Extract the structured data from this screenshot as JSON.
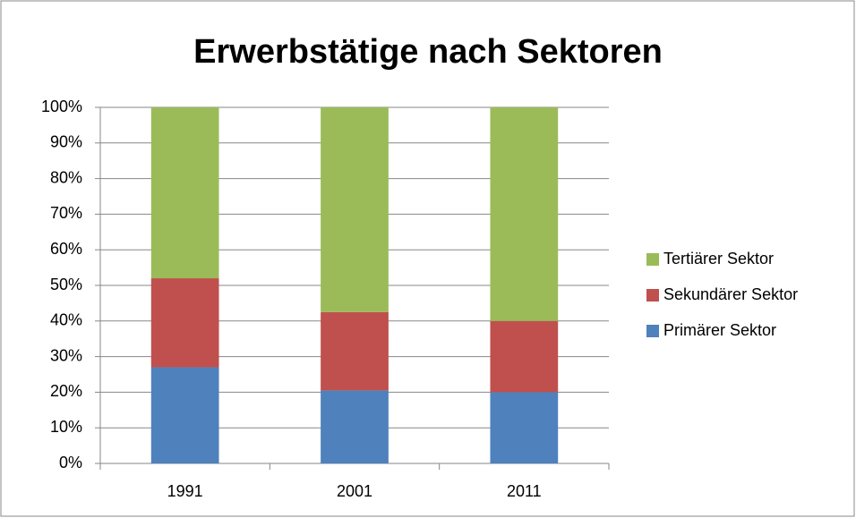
{
  "chart_data": {
    "type": "stacked_bar",
    "title": "Erwerbstätige nach Sektoren",
    "categories": [
      "1991",
      "2001",
      "2011"
    ],
    "series": [
      {
        "name": "Primärer Sektor",
        "color": "#4f81bd",
        "values": [
          27,
          20.5,
          20
        ]
      },
      {
        "name": "Sekundärer Sektor",
        "color": "#c0504d",
        "values": [
          25,
          22,
          20
        ]
      },
      {
        "name": "Tertiärer Sektor",
        "color": "#9bbb59",
        "values": [
          48,
          57.5,
          60
        ]
      }
    ],
    "ylim": [
      0,
      100
    ],
    "yticks": [
      {
        "value": 0,
        "label": "0%"
      },
      {
        "value": 10,
        "label": "10%"
      },
      {
        "value": 20,
        "label": "20%"
      },
      {
        "value": 30,
        "label": "30%"
      },
      {
        "value": 40,
        "label": "40%"
      },
      {
        "value": 50,
        "label": "50%"
      },
      {
        "value": 60,
        "label": "60%"
      },
      {
        "value": 70,
        "label": "70%"
      },
      {
        "value": 80,
        "label": "80%"
      },
      {
        "value": 90,
        "label": "90%"
      },
      {
        "value": 100,
        "label": "100%"
      }
    ],
    "grid": true,
    "legend": "right"
  }
}
